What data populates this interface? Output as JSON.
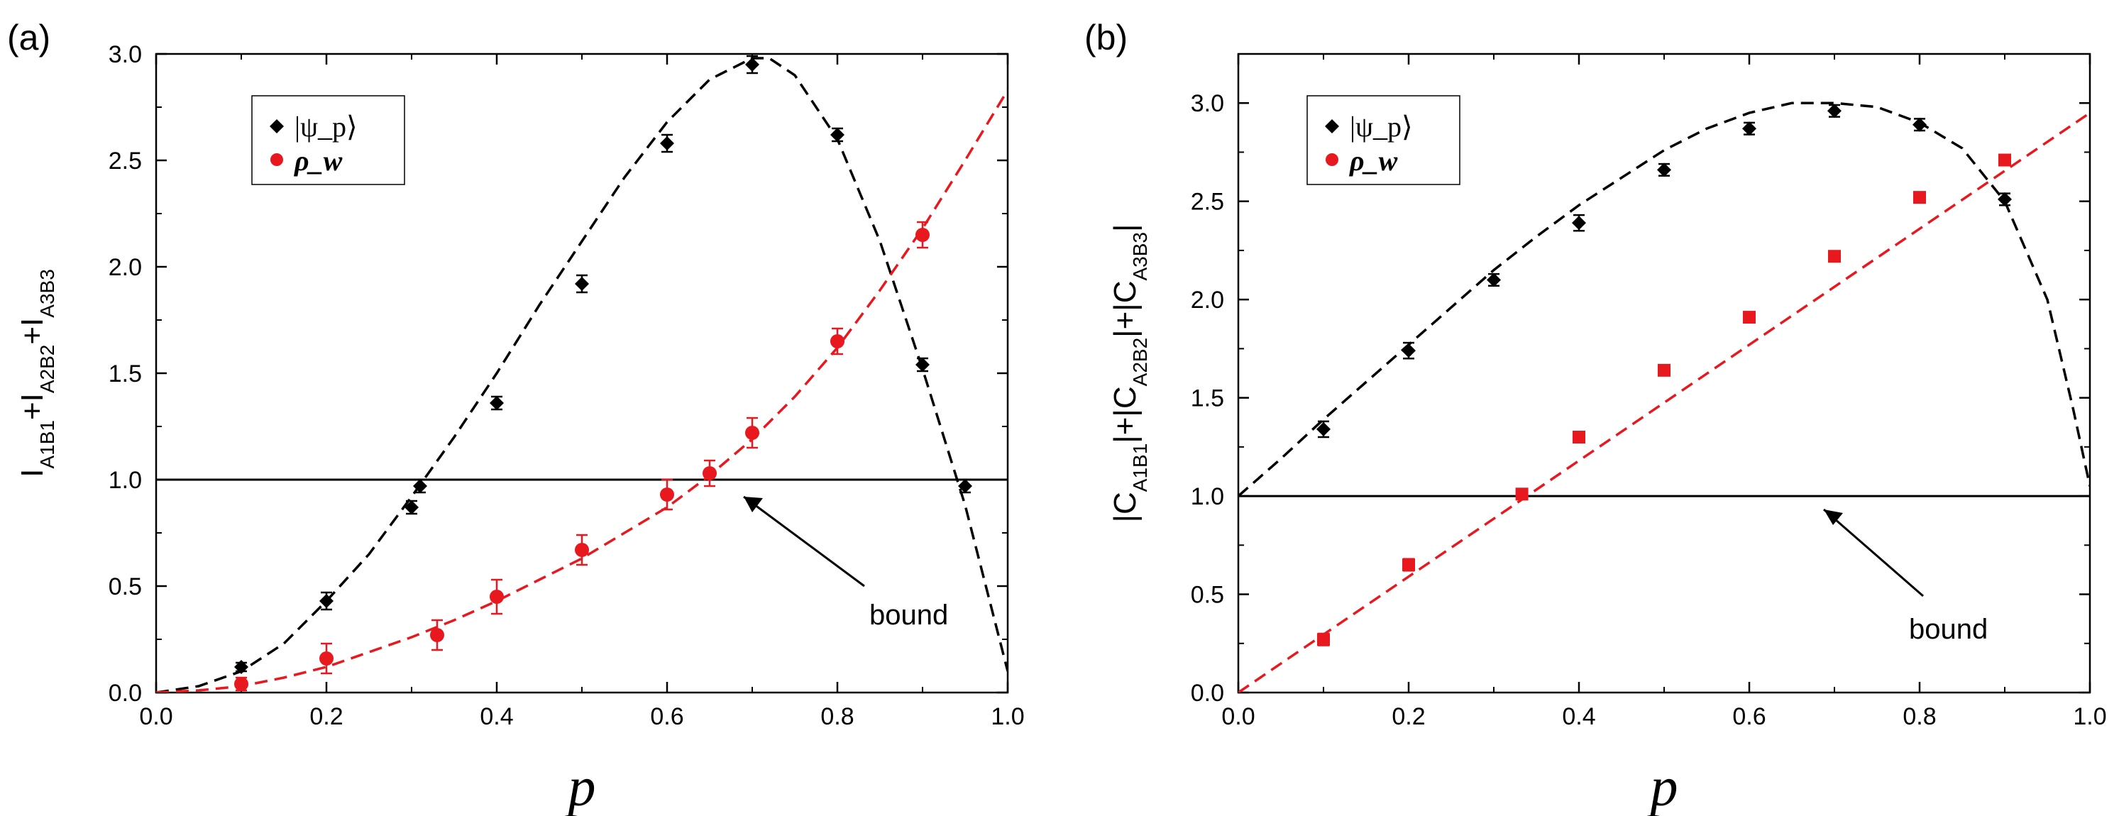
{
  "chart_data": [
    {
      "type": "scatter",
      "panel_label": "(a)",
      "xlabel": "p",
      "ylabel": "I_{A1B1}+I_{A2B2}+I_{A3B3}",
      "ylabel_parts": [
        {
          "text": "I",
          "sub": "A1B1"
        },
        {
          "text": "+I",
          "sub": "A2B2"
        },
        {
          "text": "+I",
          "sub": "A3B3"
        }
      ],
      "xlim": [
        0,
        1
      ],
      "ylim": [
        0,
        3
      ],
      "xticks": [
        "0.0",
        "0.2",
        "0.4",
        "0.6",
        "0.8",
        "1.0"
      ],
      "yticks": [
        "0.0",
        "0.5",
        "1.0",
        "1.5",
        "2.0",
        "2.5",
        "3.0"
      ],
      "legend": {
        "position": "upper-left",
        "entries": [
          {
            "symbol": "diamond",
            "color": "#000000",
            "label": "|ψ_p⟩"
          },
          {
            "symbol": "circle",
            "color": "#e8191e",
            "label": "ρ_w"
          }
        ]
      },
      "bound": {
        "y": 1.0,
        "label": "bound"
      },
      "series": [
        {
          "name": "|ψ_p⟩ data",
          "marker": "diamond",
          "color": "#000000",
          "x": [
            0.1,
            0.2,
            0.3,
            0.31,
            0.4,
            0.5,
            0.6,
            0.7,
            0.8,
            0.9,
            0.95
          ],
          "y": [
            0.12,
            0.43,
            0.87,
            0.97,
            1.36,
            1.92,
            2.58,
            2.95,
            2.62,
            1.54,
            0.97
          ],
          "err": [
            0.02,
            0.04,
            0.03,
            0.03,
            0.03,
            0.04,
            0.04,
            0.04,
            0.03,
            0.03,
            0.03
          ]
        },
        {
          "name": "ρ_w data",
          "marker": "circle",
          "color": "#e8191e",
          "x": [
            0.1,
            0.2,
            0.33,
            0.4,
            0.5,
            0.6,
            0.65,
            0.7,
            0.8,
            0.9
          ],
          "y": [
            0.04,
            0.16,
            0.27,
            0.45,
            0.67,
            0.93,
            1.03,
            1.22,
            1.65,
            2.15
          ],
          "err": [
            0.03,
            0.07,
            0.07,
            0.08,
            0.07,
            0.07,
            0.06,
            0.07,
            0.06,
            0.06
          ]
        },
        {
          "name": "|ψ_p⟩ theory",
          "style": "dashed",
          "color": "#000000",
          "x": [
            0.0,
            0.05,
            0.1,
            0.15,
            0.2,
            0.25,
            0.3,
            0.35,
            0.4,
            0.45,
            0.5,
            0.55,
            0.6,
            0.65,
            0.7,
            0.72,
            0.75,
            0.8,
            0.85,
            0.9,
            0.95,
            1.0
          ],
          "y": [
            0.0,
            0.03,
            0.1,
            0.23,
            0.43,
            0.65,
            0.92,
            1.2,
            1.5,
            1.82,
            2.12,
            2.42,
            2.68,
            2.88,
            2.98,
            2.98,
            2.9,
            2.6,
            2.12,
            1.52,
            0.88,
            0.1
          ]
        },
        {
          "name": "ρ_w theory",
          "style": "dashed",
          "color": "#e8191e",
          "x": [
            0.0,
            0.05,
            0.1,
            0.15,
            0.2,
            0.25,
            0.3,
            0.35,
            0.4,
            0.45,
            0.5,
            0.55,
            0.6,
            0.65,
            0.7,
            0.75,
            0.8,
            0.85,
            0.9,
            0.95,
            1.0
          ],
          "y": [
            0.0,
            0.01,
            0.03,
            0.07,
            0.12,
            0.19,
            0.26,
            0.34,
            0.43,
            0.53,
            0.63,
            0.75,
            0.87,
            1.02,
            1.19,
            1.39,
            1.62,
            1.89,
            2.18,
            2.5,
            2.83
          ]
        }
      ]
    },
    {
      "type": "scatter",
      "panel_label": "(b)",
      "xlabel": "p",
      "ylabel": "|C_{A1B1}|+|C_{A2B2}|+|C_{A3B3}|",
      "ylabel_parts": [
        {
          "text": "|C",
          "sub": "A1B1"
        },
        {
          "text": "|+|C",
          "sub": "A2B2"
        },
        {
          "text": "|+|C",
          "sub": "A3B3"
        },
        {
          "text": "|",
          "sub": ""
        }
      ],
      "xlim": [
        0,
        1
      ],
      "ylim": [
        0,
        3.25
      ],
      "xticks": [
        "0.0",
        "0.2",
        "0.4",
        "0.6",
        "0.8",
        "1.0"
      ],
      "yticks": [
        "0.0",
        "0.5",
        "1.0",
        "1.5",
        "2.0",
        "2.5",
        "3.0"
      ],
      "legend": {
        "position": "upper-left",
        "entries": [
          {
            "symbol": "diamond",
            "color": "#000000",
            "label": "|ψ_p⟩"
          },
          {
            "symbol": "circle",
            "color": "#e8191e",
            "label": "ρ_w"
          }
        ]
      },
      "bound": {
        "y": 1.0,
        "label": "bound"
      },
      "series": [
        {
          "name": "|ψ_p⟩ data",
          "marker": "diamond",
          "color": "#000000",
          "x": [
            0.1,
            0.2,
            0.3,
            0.4,
            0.5,
            0.6,
            0.7,
            0.8,
            0.9
          ],
          "y": [
            1.34,
            1.74,
            2.1,
            2.39,
            2.66,
            2.87,
            2.96,
            2.89,
            2.51
          ],
          "err": [
            0.04,
            0.04,
            0.03,
            0.04,
            0.03,
            0.03,
            0.03,
            0.03,
            0.03
          ]
        },
        {
          "name": "ρ_w data",
          "marker": "square",
          "color": "#e8191e",
          "x": [
            0.1,
            0.2,
            0.333,
            0.4,
            0.5,
            0.6,
            0.7,
            0.8,
            0.9
          ],
          "y": [
            0.27,
            0.65,
            1.01,
            1.3,
            1.64,
            1.91,
            2.22,
            2.52,
            2.71
          ],
          "err": [
            0.03,
            0.03,
            0.02,
            0.02,
            0.02,
            0.02,
            0.02,
            0.02,
            0.02
          ]
        },
        {
          "name": "|ψ_p⟩ theory",
          "style": "dashed",
          "color": "#000000",
          "x": [
            0.0,
            0.05,
            0.1,
            0.15,
            0.2,
            0.25,
            0.3,
            0.35,
            0.4,
            0.45,
            0.5,
            0.55,
            0.6,
            0.65,
            0.7,
            0.75,
            0.8,
            0.85,
            0.9,
            0.95,
            0.98,
            1.0
          ],
          "y": [
            1.0,
            1.19,
            1.39,
            1.58,
            1.77,
            1.96,
            2.15,
            2.32,
            2.48,
            2.62,
            2.76,
            2.87,
            2.95,
            3.0,
            3.0,
            2.98,
            2.9,
            2.77,
            2.5,
            2.0,
            1.45,
            1.05
          ]
        },
        {
          "name": "ρ_w theory",
          "style": "dashed",
          "color": "#e8191e",
          "x": [
            0.0,
            1.0
          ],
          "y": [
            0.0,
            2.95
          ]
        }
      ]
    }
  ]
}
